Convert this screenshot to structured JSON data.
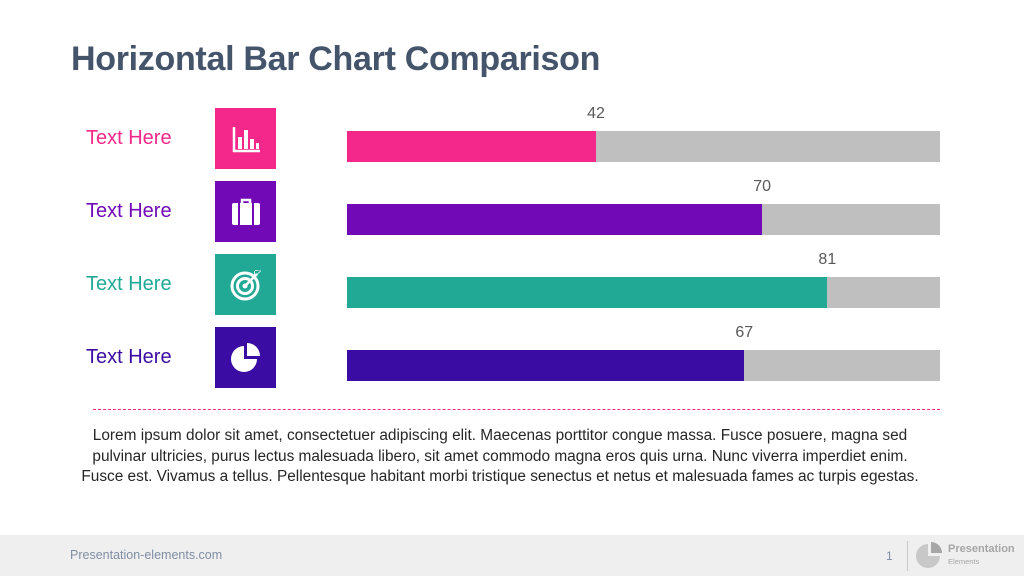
{
  "slide": {
    "title": "Horizontal Bar Chart Comparison",
    "description": "Lorem ipsum dolor sit amet, consectetuer adipiscing elit. Maecenas porttitor congue massa. Fusce posuere, magna sed pulvinar ultricies, purus lectus malesuada libero, sit amet commodo magna eros quis urna. Nunc viverra imperdiet enim. Fusce est. Vivamus a tellus. Pellentesque habitant morbi tristique senectus et netus et malesuada fames ac turpis egestas."
  },
  "chart_data": {
    "type": "bar",
    "orientation": "horizontal",
    "title": "",
    "xlim": [
      0,
      100
    ],
    "track_color": "#bfbfbf",
    "categories": [
      "Text Here",
      "Text Here",
      "Text Here",
      "Text Here"
    ],
    "values": [
      42,
      70,
      81,
      67
    ],
    "colors": [
      "#f4288a",
      "#7209b7",
      "#21a995",
      "#3a0ca3"
    ],
    "icons": [
      "bar-chart-icon",
      "briefcase-icon",
      "target-icon",
      "pie-chart-icon"
    ]
  },
  "footer": {
    "site": "Presentation-elements.com",
    "page": "1",
    "logo_name": "Presentation",
    "logo_sub": "Elements"
  }
}
